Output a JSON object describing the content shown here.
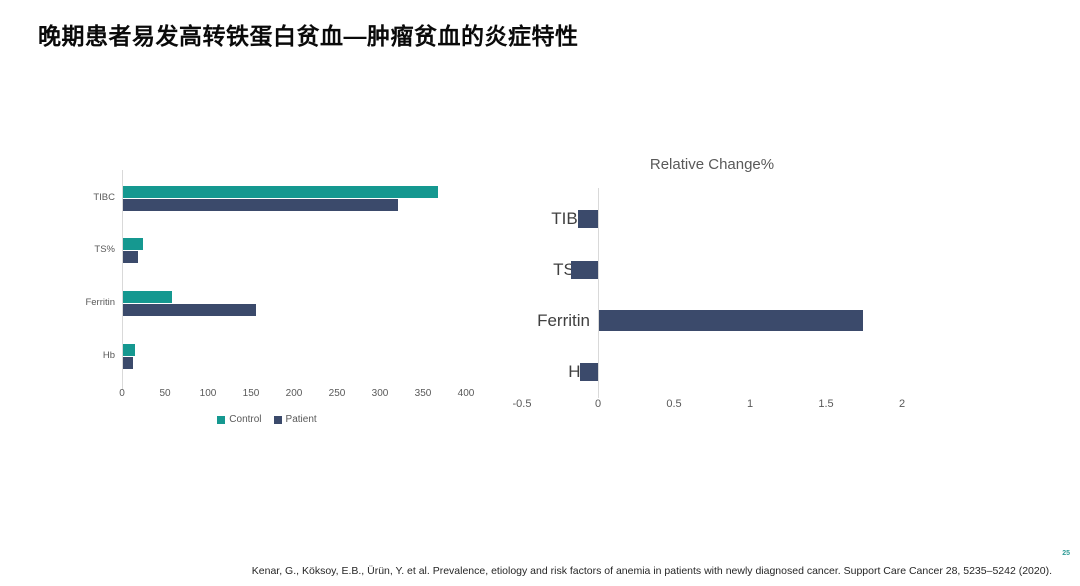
{
  "slide": {
    "title": "晚期患者易发高转铁蛋白贫血—肿瘤贫血的炎症特性",
    "page_number": "25",
    "citation": "Kenar, G., Köksoy, E.B., Ürün, Y. et al. Prevalence, etiology and risk factors of anemia in patients with newly diagnosed cancer. Support Care Cancer 28, 5235–5242 (2020)."
  },
  "colors": {
    "control": "#159890",
    "patient": "#3b4a6b",
    "axis_line": "#d9d9d9",
    "axis_text": "#595959",
    "right_label_text": "#404040",
    "page_number": "#2e9b95"
  },
  "chart_data": [
    {
      "type": "bar",
      "orientation": "horizontal",
      "title": "",
      "categories": [
        "TIBC",
        "TS%",
        "Ferritin",
        "Hb"
      ],
      "series": [
        {
          "name": "Control",
          "color": "#159890",
          "values": [
            366,
            23,
            57,
            14
          ]
        },
        {
          "name": "Patient",
          "color": "#3b4a6b",
          "values": [
            320,
            18,
            155,
            12
          ]
        }
      ],
      "xticks": [
        "0",
        "50",
        "100",
        "150",
        "200",
        "250",
        "300",
        "350",
        "400"
      ],
      "xtick_values": [
        0,
        50,
        100,
        150,
        200,
        250,
        300,
        350,
        400
      ],
      "xlim": [
        0,
        400
      ],
      "grid": false,
      "legend_position": "bottom"
    },
    {
      "type": "bar",
      "orientation": "horizontal",
      "title": "Relative Change%",
      "categories": [
        "TIBC",
        "TS%",
        "Ferritin",
        "Hb"
      ],
      "values": [
        -0.13,
        -0.18,
        1.74,
        -0.12
      ],
      "bar_color": "#3b4a6b",
      "xticks": [
        "-0.5",
        "0",
        "0.5",
        "1",
        "1.5",
        "2"
      ],
      "xtick_values": [
        -0.5,
        0,
        0.5,
        1,
        1.5,
        2
      ],
      "xlim": [
        -0.5,
        2
      ],
      "grid": false,
      "legend_position": "none"
    }
  ]
}
